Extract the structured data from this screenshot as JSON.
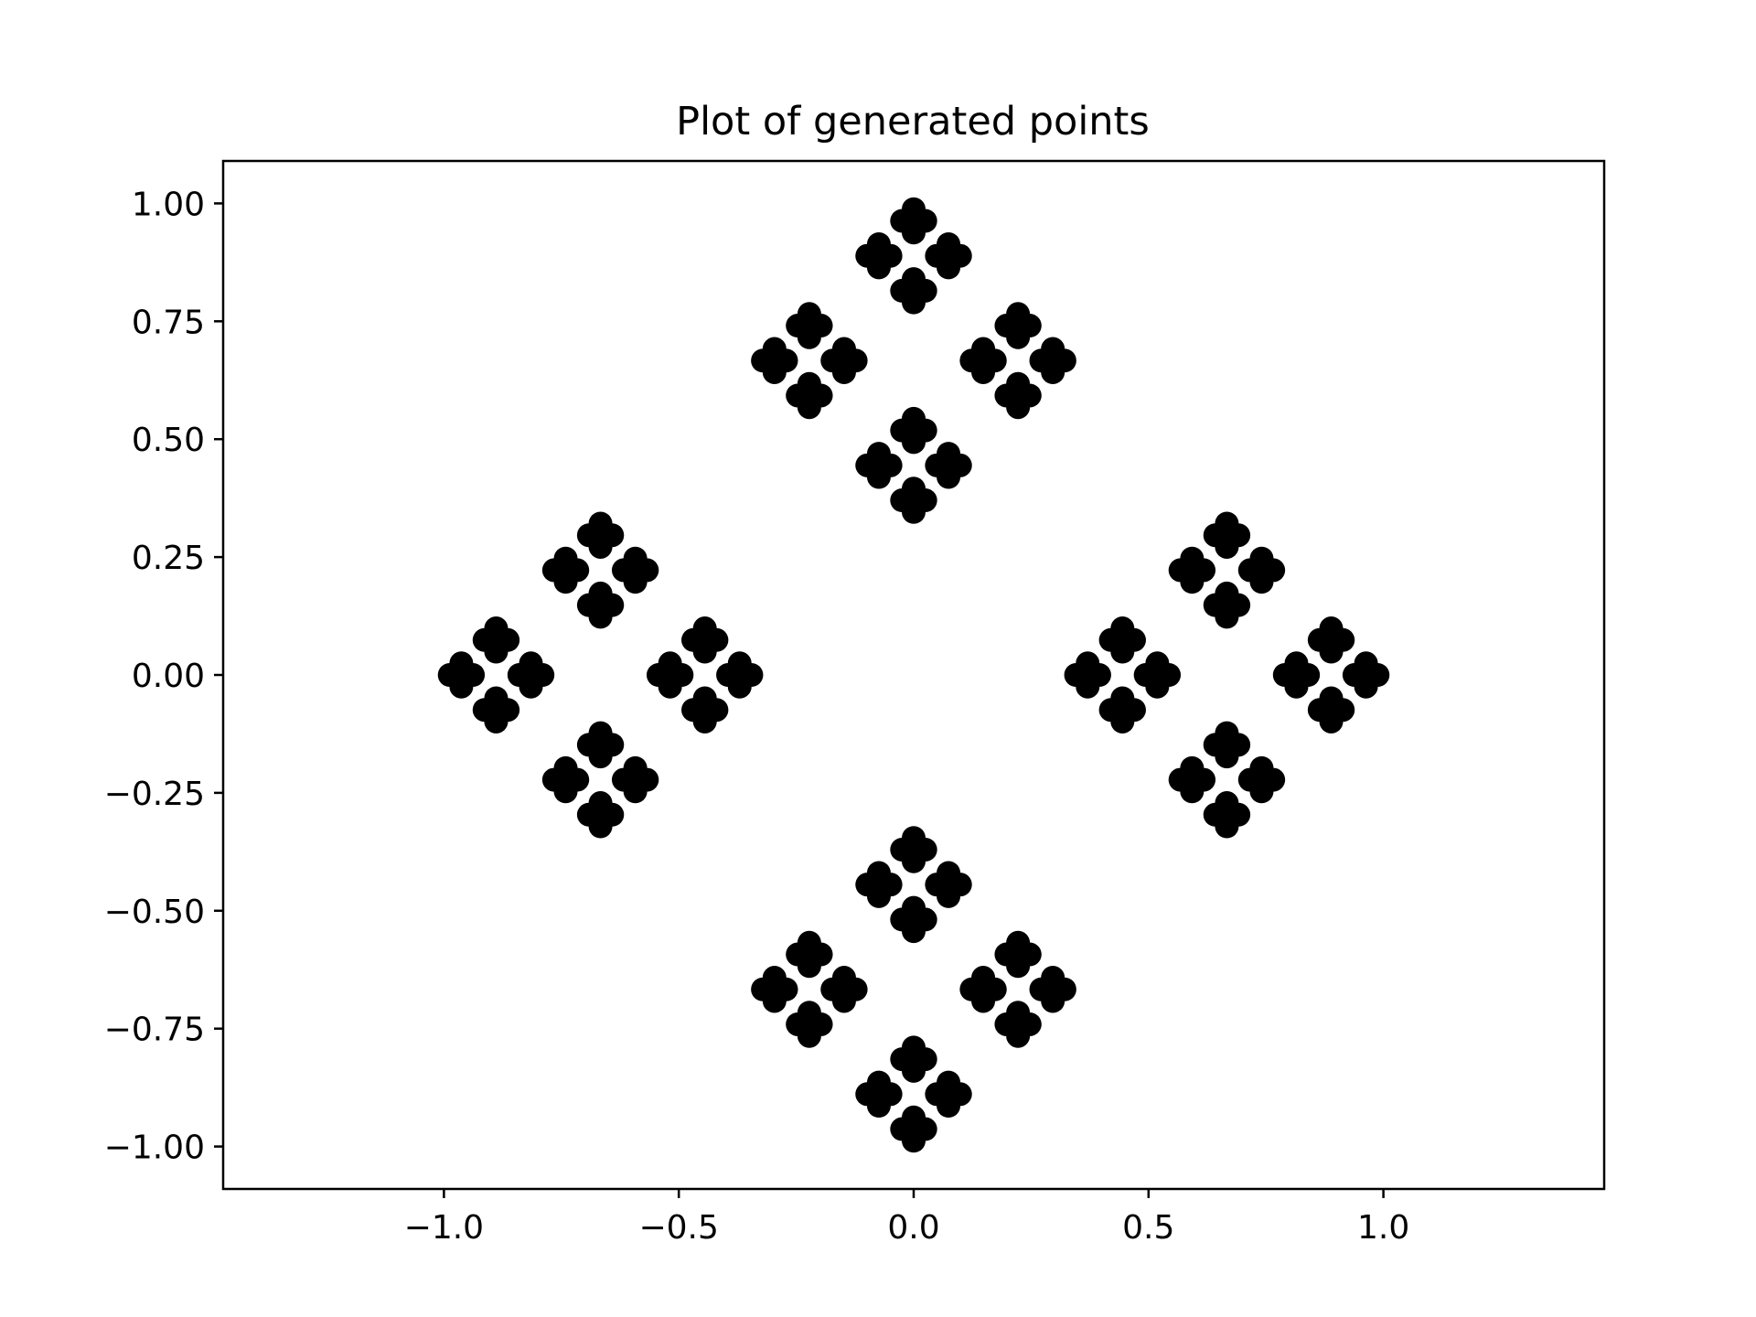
{
  "chart_data": {
    "type": "scatter",
    "title": "Plot of generated points",
    "xlabel": "",
    "ylabel": "",
    "xlim": [
      -1.47,
      1.47
    ],
    "ylim": [
      -1.09,
      1.09
    ],
    "grid": false,
    "legend": "none",
    "marker_color": "#000000",
    "x_ticks": [
      {
        "value": -1.0,
        "label": "−1.0"
      },
      {
        "value": -0.5,
        "label": "−0.5"
      },
      {
        "value": 0.0,
        "label": "0.0"
      },
      {
        "value": 0.5,
        "label": "0.5"
      },
      {
        "value": 1.0,
        "label": "1.0"
      }
    ],
    "y_ticks": [
      {
        "value": 1.0,
        "label": "1.00"
      },
      {
        "value": 0.75,
        "label": "0.75"
      },
      {
        "value": 0.5,
        "label": "0.50"
      },
      {
        "value": 0.25,
        "label": "0.25"
      },
      {
        "value": 0.0,
        "label": "0.00"
      },
      {
        "value": -0.25,
        "label": "−0.25"
      },
      {
        "value": -0.5,
        "label": "−0.50"
      },
      {
        "value": -0.75,
        "label": "−0.75"
      },
      {
        "value": -1.0,
        "label": "−1.00"
      }
    ],
    "generator": {
      "description": "Self-similar fractal of points: 4 levels, each level places 4 copies at diamond offsets",
      "level_offsets": [
        0.6667,
        0.2222,
        0.0741,
        0.0247
      ],
      "directions": [
        [
          1,
          0
        ],
        [
          -1,
          0
        ],
        [
          0,
          1
        ],
        [
          0,
          -1
        ]
      ]
    },
    "series": [
      {
        "name": "points",
        "color": "#000000"
      }
    ]
  }
}
